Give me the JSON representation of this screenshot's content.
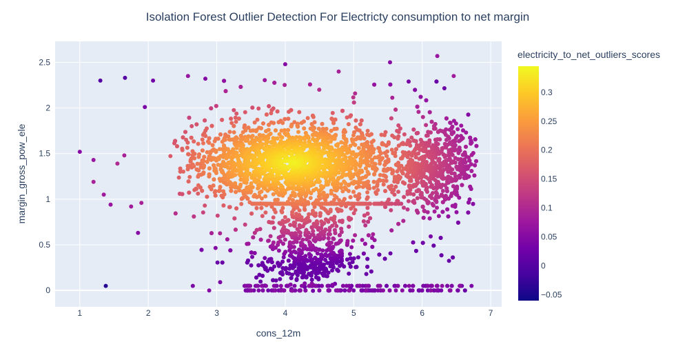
{
  "chart_data": {
    "type": "scatter",
    "title": "Isolation Forest Outlier Detection For Electricty consumption to net margin",
    "xlabel": "cons_12m",
    "ylabel": "margin_gross_pow_ele",
    "xlim": [
      0.64,
      7.16
    ],
    "ylim": [
      -0.18,
      2.73
    ],
    "xticks": [
      1,
      2,
      3,
      4,
      5,
      6,
      7
    ],
    "yticks": [
      0,
      0.5,
      1,
      1.5,
      2,
      2.5
    ],
    "ytick_labels": [
      "0",
      "0.5",
      "1",
      "1.5",
      "2",
      "2.5"
    ],
    "grid": true,
    "plot_background": "#e5ecf6",
    "colorscale_name": "Plasma",
    "colorscale": [
      "#0d0887",
      "#46039f",
      "#7201a8",
      "#9c179e",
      "#bd3786",
      "#d8576b",
      "#ed7953",
      "#fb9f3a",
      "#fdca26",
      "#f0f921"
    ],
    "colorbar": {
      "title": "electricity_to_net_outliers_scores",
      "range": [
        -0.06,
        0.345
      ],
      "ticks": [
        -0.05,
        0,
        0.05,
        0.1,
        0.15,
        0.2,
        0.25,
        0.3
      ],
      "tick_labels": [
        "−0.05",
        "0",
        "0.05",
        "0.1",
        "0.15",
        "0.2",
        "0.25",
        "0.3"
      ]
    },
    "density_model": {
      "core_center": [
        4.1,
        1.4
      ],
      "core_spread": [
        0.75,
        0.2
      ],
      "x_range": [
        2.3,
        6.8
      ],
      "score_range": [
        0.05,
        0.34
      ],
      "approx_point_count": 6000
    },
    "points": [
      {
        "x": 1.0,
        "y": 1.52,
        "score": 0.05
      },
      {
        "x": 1.2,
        "y": 1.43,
        "score": 0.07
      },
      {
        "x": 1.3,
        "y": 2.3,
        "score": 0.0
      },
      {
        "x": 1.38,
        "y": 0.05,
        "score": -0.04
      },
      {
        "x": 1.66,
        "y": 2.33,
        "score": 0.0
      },
      {
        "x": 1.95,
        "y": 2.01,
        "score": 0.04
      },
      {
        "x": 2.07,
        "y": 2.3,
        "score": 0.03
      },
      {
        "x": 1.85,
        "y": 0.63,
        "score": 0.05
      },
      {
        "x": 1.45,
        "y": 0.94,
        "score": 0.07
      },
      {
        "x": 1.2,
        "y": 1.19,
        "score": 0.09
      },
      {
        "x": 1.35,
        "y": 1.05,
        "score": 0.08
      },
      {
        "x": 1.75,
        "y": 0.92,
        "score": 0.08
      },
      {
        "x": 1.9,
        "y": 0.96,
        "score": 0.09
      },
      {
        "x": 1.55,
        "y": 1.39,
        "score": 0.1
      },
      {
        "x": 1.65,
        "y": 1.48,
        "score": 0.09
      },
      {
        "x": 4.0,
        "y": 2.48,
        "score": 0.05
      },
      {
        "x": 5.53,
        "y": 2.5,
        "score": 0.05
      },
      {
        "x": 6.22,
        "y": 2.57,
        "score": 0.07
      },
      {
        "x": 6.46,
        "y": 2.35,
        "score": 0.08
      },
      {
        "x": 4.78,
        "y": 2.4,
        "score": 0.09
      },
      {
        "x": 2.58,
        "y": 2.35,
        "score": 0.07
      },
      {
        "x": 2.65,
        "y": 0.05,
        "score": 0.04
      },
      {
        "x": 2.89,
        "y": 0.0,
        "score": 0.05
      },
      {
        "x": 3.05,
        "y": 0.09,
        "score": 0.04
      },
      {
        "x": 6.72,
        "y": 0.05,
        "score": 0.04
      }
    ]
  }
}
